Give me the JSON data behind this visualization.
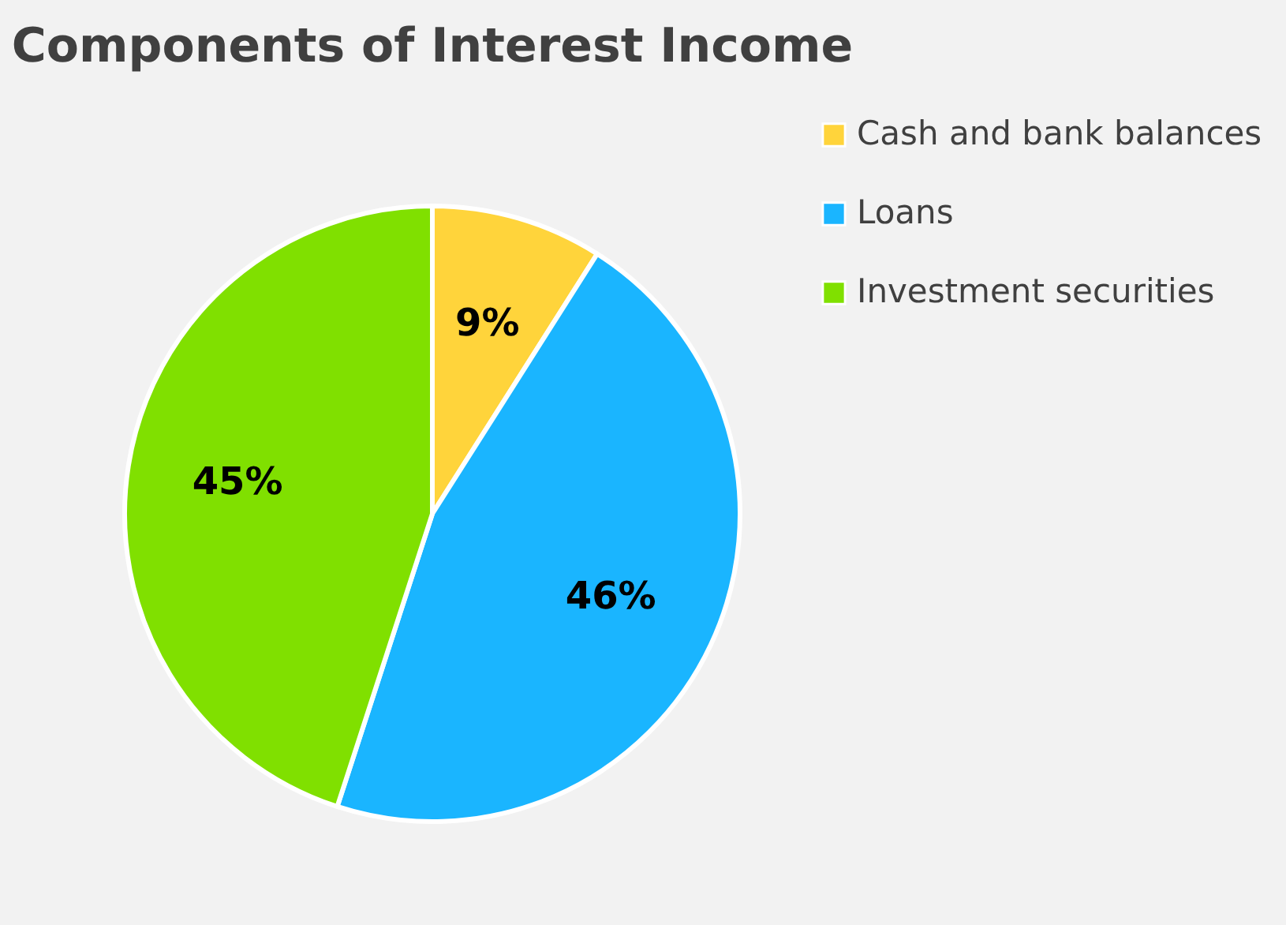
{
  "chart_data": {
    "type": "pie",
    "title": "Components of Interest Income",
    "categories": [
      "Cash and bank balances",
      "Loans",
      "Investment securities"
    ],
    "values": [
      9,
      46,
      45
    ],
    "colors": [
      "#ffd43b",
      "#1ab5ff",
      "#80e000"
    ],
    "value_labels": [
      "9%",
      "46%",
      "45%"
    ],
    "legend": "right"
  }
}
